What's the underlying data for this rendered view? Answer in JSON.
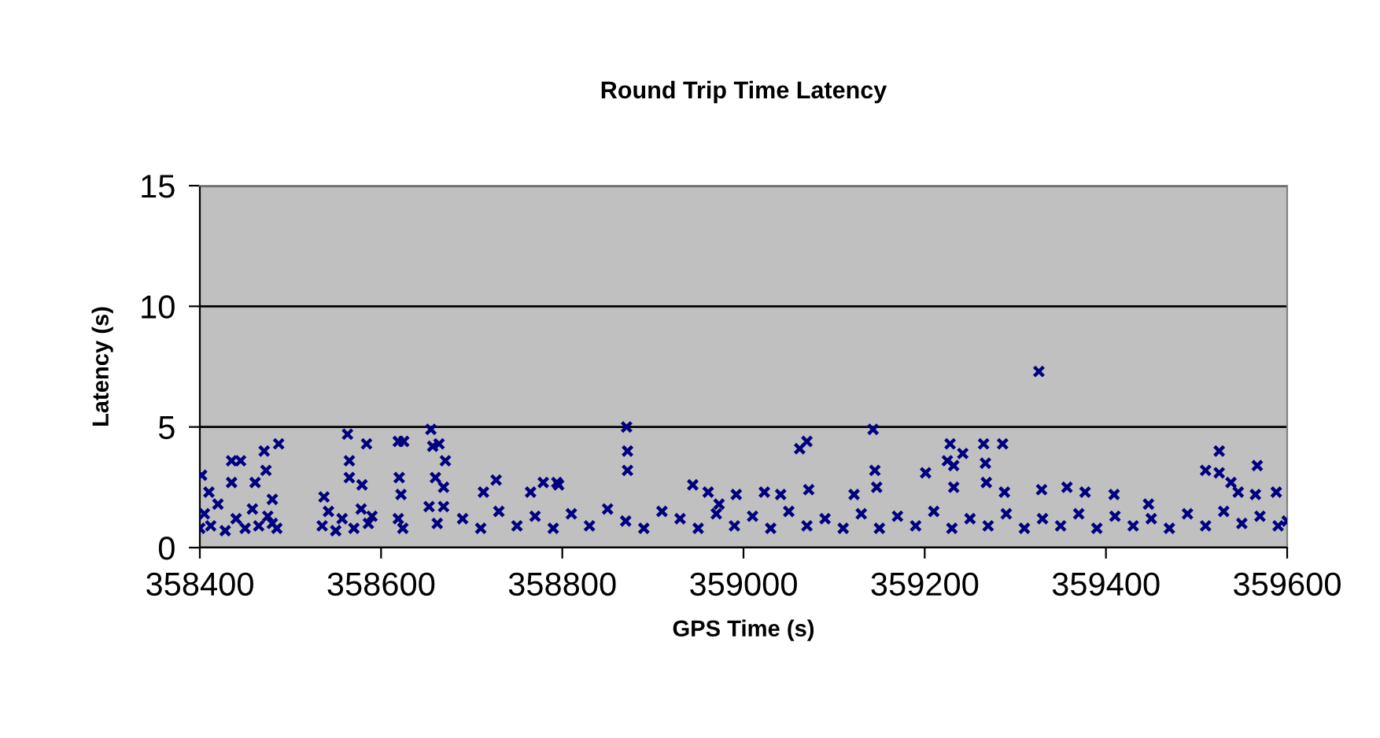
{
  "chart_data": {
    "type": "scatter",
    "title": "Round Trip Time Latency",
    "xlabel": "GPS Time (s)",
    "ylabel": "Latency (s)",
    "xlim": [
      358400,
      359600
    ],
    "ylim": [
      0,
      15
    ],
    "xticks": [
      358400,
      358600,
      358800,
      359000,
      359200,
      359400,
      359600
    ],
    "yticks": [
      0,
      5,
      10,
      15
    ],
    "grid": "y",
    "marker": "cross",
    "legend": false,
    "series": [
      {
        "color": "#000080",
        "x": [
          358400,
          358402,
          358405,
          358410,
          358412,
          358420,
          358428,
          358435,
          358435,
          358440,
          358445,
          358450,
          358458,
          358461,
          358465,
          358471,
          358473,
          358475,
          358480,
          358480,
          358485,
          358487,
          358535,
          358537,
          358542,
          358550,
          358557,
          358563,
          358565,
          358565,
          358570,
          358578,
          358579,
          358584,
          358586,
          358590,
          358619,
          358619,
          358620,
          358622,
          358624,
          358625,
          358653,
          358655,
          358657,
          358660,
          358662,
          358664,
          358669,
          358669,
          358671,
          358690,
          358710,
          358713,
          358727,
          358730,
          358750,
          358765,
          358770,
          358779,
          358790,
          358794,
          358796,
          358810,
          358830,
          358850,
          358871,
          358872,
          358872,
          358870,
          358890,
          358910,
          358930,
          358944,
          358950,
          358961,
          358970,
          358973,
          358990,
          358992,
          359010,
          359023,
          359030,
          359041,
          359050,
          359062,
          359070,
          359072,
          359070,
          359090,
          359110,
          359122,
          359130,
          359143,
          359145,
          359147,
          359150,
          359170,
          359190,
          359201,
          359210,
          359225,
          359228,
          359230,
          359232,
          359232,
          359242,
          359250,
          359265,
          359267,
          359268,
          359270,
          359286,
          359288,
          359290,
          359310,
          359326,
          359329,
          359330,
          359350,
          359357,
          359370,
          359377,
          359390,
          359409,
          359410,
          359430,
          359447,
          359450,
          359470,
          359490,
          359510,
          359510,
          359525,
          359525,
          359530,
          359538,
          359546,
          359550,
          359565,
          359567,
          359570,
          359588,
          359590,
          359600
        ],
        "values": [
          0.8,
          3.0,
          1.4,
          2.3,
          0.9,
          1.8,
          0.7,
          3.6,
          2.7,
          1.2,
          3.6,
          0.8,
          1.6,
          2.7,
          0.9,
          4.0,
          3.2,
          1.3,
          2.0,
          1.0,
          0.8,
          4.3,
          0.9,
          2.1,
          1.5,
          0.7,
          1.2,
          4.7,
          3.6,
          2.9,
          0.8,
          1.6,
          2.6,
          4.3,
          1.0,
          1.3,
          4.4,
          1.2,
          2.9,
          2.2,
          0.8,
          4.4,
          1.7,
          4.9,
          4.2,
          2.9,
          1.0,
          4.3,
          2.5,
          1.7,
          3.6,
          1.2,
          0.8,
          2.3,
          2.8,
          1.5,
          0.9,
          2.3,
          1.3,
          2.7,
          0.8,
          2.7,
          2.6,
          1.4,
          0.9,
          1.6,
          5.0,
          4.0,
          3.2,
          1.1,
          0.8,
          1.5,
          1.2,
          2.6,
          0.8,
          2.3,
          1.4,
          1.8,
          0.9,
          2.2,
          1.3,
          2.3,
          0.8,
          2.2,
          1.5,
          4.1,
          4.4,
          2.4,
          0.9,
          1.2,
          0.8,
          2.2,
          1.4,
          4.9,
          3.2,
          2.5,
          0.8,
          1.3,
          0.9,
          3.1,
          1.5,
          3.6,
          4.3,
          0.8,
          3.4,
          2.5,
          3.9,
          1.2,
          4.3,
          3.5,
          2.7,
          0.9,
          4.3,
          2.3,
          1.4,
          0.8,
          7.3,
          2.4,
          1.2,
          0.9,
          2.5,
          1.4,
          2.3,
          0.8,
          2.2,
          1.3,
          0.9,
          1.8,
          1.2,
          0.8,
          1.4,
          0.9,
          3.2,
          4.0,
          3.1,
          1.5,
          2.7,
          2.3,
          1.0,
          2.2,
          3.4,
          1.3,
          2.3,
          0.9,
          1.1
        ]
      }
    ]
  }
}
